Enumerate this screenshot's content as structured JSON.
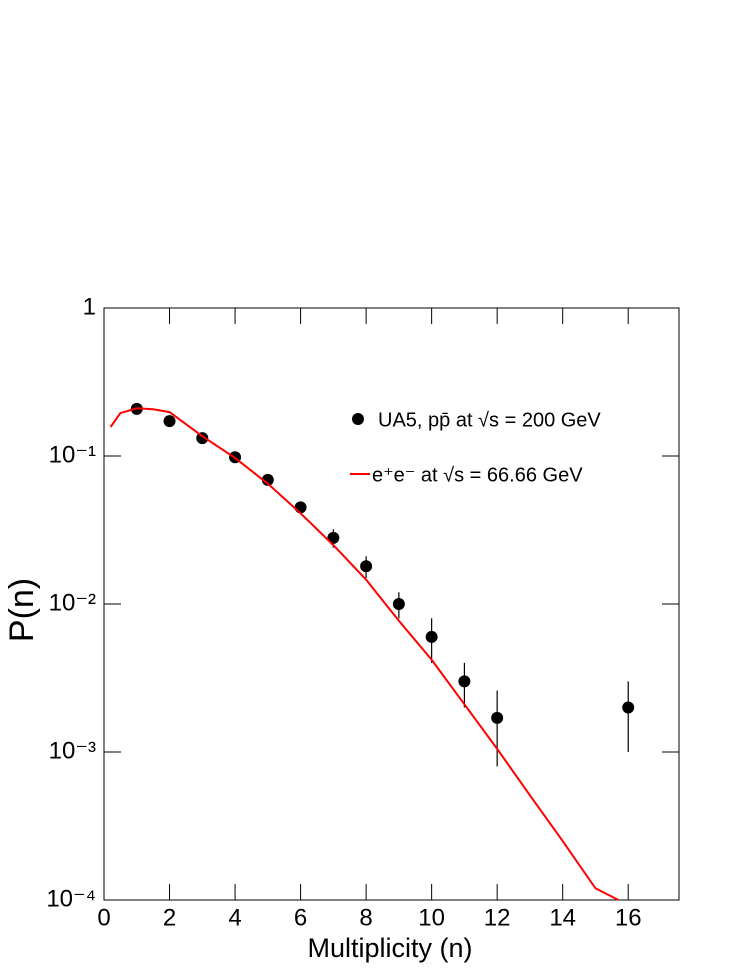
{
  "chart_data": {
    "type": "scatter",
    "xlabel": "Multiplicity (n)",
    "ylabel": "P(n)",
    "xlim": [
      0,
      17.55
    ],
    "xticks": [
      0,
      2,
      4,
      6,
      8,
      10,
      12,
      14,
      16
    ],
    "ylim": [
      0.0001,
      1
    ],
    "log_y": true,
    "yticks": [
      {
        "value": 0.0001,
        "label": "10⁻⁴"
      },
      {
        "value": 0.001,
        "label": "10⁻³"
      },
      {
        "value": 0.01,
        "label": "10⁻²"
      },
      {
        "value": 0.1,
        "label": "10⁻¹"
      },
      1
    ],
    "series": [
      {
        "name": "UA5, pp̄ at √s = 200 GeV",
        "type": "scatter",
        "color": "#000000",
        "x": [
          1,
          2,
          3,
          4,
          5,
          6,
          7,
          8,
          9,
          10,
          11,
          12,
          16
        ],
        "values": [
          0.208,
          0.172,
          0.132,
          0.098,
          0.069,
          0.045,
          0.028,
          0.018,
          0.01,
          0.006,
          0.003,
          0.0017,
          0.002
        ],
        "errors": [
          0.005,
          0.004,
          0.004,
          0.003,
          0.003,
          0.003,
          0.004,
          0.003,
          0.002,
          0.002,
          0.001,
          0.0009,
          0.001
        ]
      },
      {
        "name": "e⁺e⁻ at √s = 66.66 GeV",
        "type": "line",
        "color": "#ff0000",
        "x": [
          0.2,
          0.5,
          1,
          1.5,
          2,
          3,
          4,
          5,
          6,
          7,
          8,
          9,
          10,
          11,
          12,
          13,
          14,
          15,
          15.7
        ],
        "values": [
          0.157,
          0.195,
          0.21,
          0.207,
          0.198,
          0.136,
          0.097,
          0.065,
          0.041,
          0.025,
          0.0146,
          0.0077,
          0.0042,
          0.0021,
          0.00105,
          0.00051,
          0.00025,
          0.00012,
          0.0001
        ]
      }
    ]
  }
}
